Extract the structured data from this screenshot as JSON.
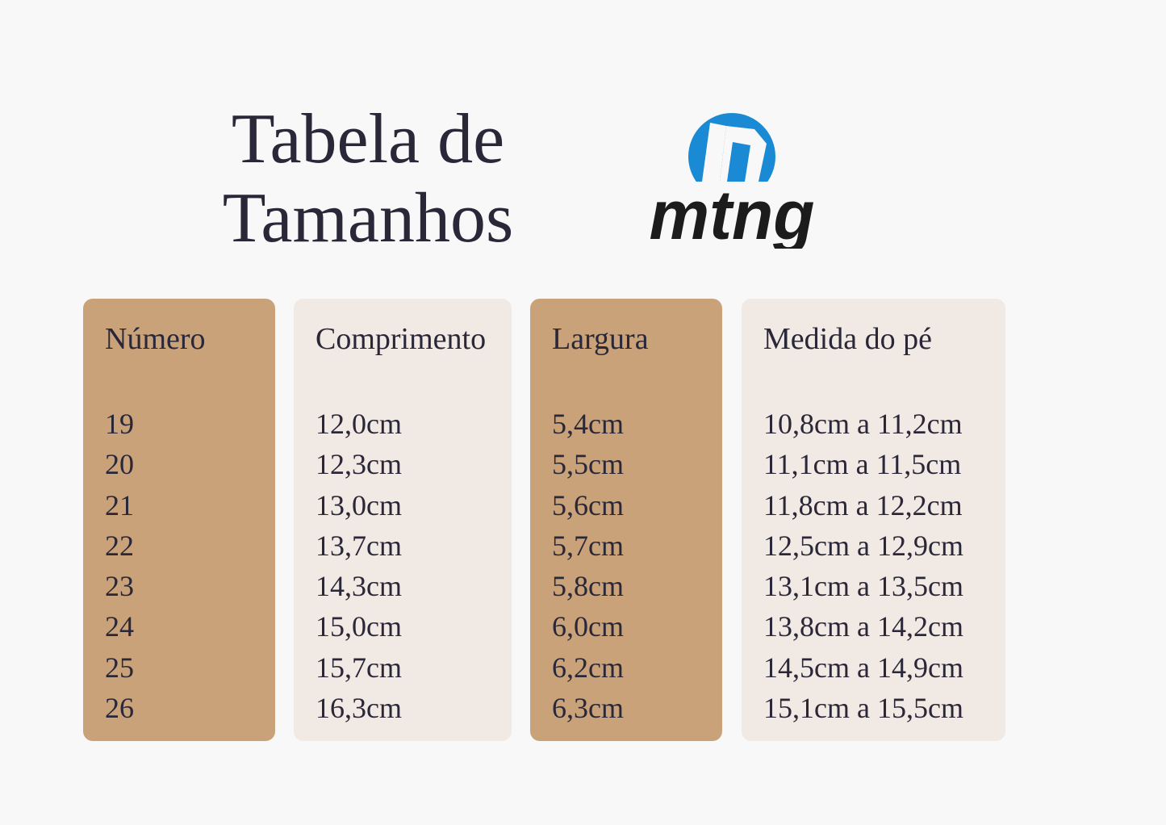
{
  "title": {
    "line1": "Tabela de",
    "line2": "Tamanhos"
  },
  "logo": {
    "text": "mtng",
    "colors": {
      "circle": "#1a8ad4",
      "text": "#1c1c1c"
    }
  },
  "colors": {
    "dark_column": "#c9a27a",
    "light_column": "#f1e9e3",
    "text": "#2a2838",
    "background": "#f8f8f8"
  },
  "columns": [
    {
      "header": "Número",
      "style": "dark",
      "values": [
        "19",
        "20",
        "21",
        "22",
        "23",
        "24",
        "25",
        "26"
      ]
    },
    {
      "header": "Comprimento",
      "style": "light",
      "values": [
        "12,0cm",
        "12,3cm",
        "13,0cm",
        "13,7cm",
        "14,3cm",
        "15,0cm",
        "15,7cm",
        "16,3cm"
      ]
    },
    {
      "header": "Largura",
      "style": "dark",
      "values": [
        "5,4cm",
        "5,5cm",
        "5,6cm",
        "5,7cm",
        "5,8cm",
        "6,0cm",
        "6,2cm",
        "6,3cm"
      ]
    },
    {
      "header": "Medida do pé",
      "style": "light",
      "values": [
        "10,8cm a 11,2cm",
        "11,1cm a 11,5cm",
        "11,8cm a 12,2cm",
        "12,5cm a 12,9cm",
        "13,1cm a 13,5cm",
        "13,8cm a 14,2cm",
        "14,5cm a 14,9cm",
        "15,1cm a 15,5cm"
      ]
    }
  ]
}
